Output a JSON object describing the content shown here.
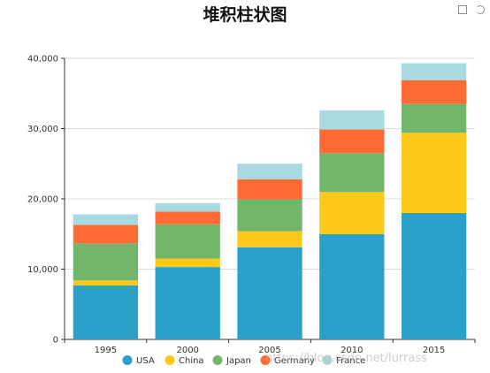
{
  "title": "堆积柱状图",
  "toolbox": {
    "items": [
      "save-as-image-icon",
      "restore-icon"
    ]
  },
  "watermark": "https://blog.csdn.net/lurrass",
  "chart_data": {
    "type": "bar",
    "stacked": true,
    "title": "堆积柱状图",
    "categories": [
      "1995",
      "2000",
      "2005",
      "2010",
      "2015"
    ],
    "series": [
      {
        "name": "USA",
        "color": "#2ba1c9",
        "values": [
          7700,
          10300,
          13100,
          15000,
          18000
        ]
      },
      {
        "name": "China",
        "color": "#fec91a",
        "values": [
          700,
          1200,
          2300,
          6000,
          11400
        ]
      },
      {
        "name": "Japan",
        "color": "#72b66c",
        "values": [
          5300,
          4900,
          4600,
          5500,
          4100
        ]
      },
      {
        "name": "Germany",
        "color": "#ff6b35",
        "values": [
          2600,
          1800,
          2800,
          3400,
          3400
        ]
      },
      {
        "name": "France",
        "color": "#a8dae0",
        "values": [
          1500,
          1200,
          2200,
          2700,
          2400
        ]
      }
    ],
    "ylim": [
      0,
      40000
    ],
    "yticks": [
      0,
      10000,
      20000,
      30000,
      40000
    ],
    "ytick_labels": [
      "0",
      "10,000",
      "20,000",
      "30,000",
      "40,000"
    ],
    "grid": true,
    "legend_position": "bottom-center"
  }
}
